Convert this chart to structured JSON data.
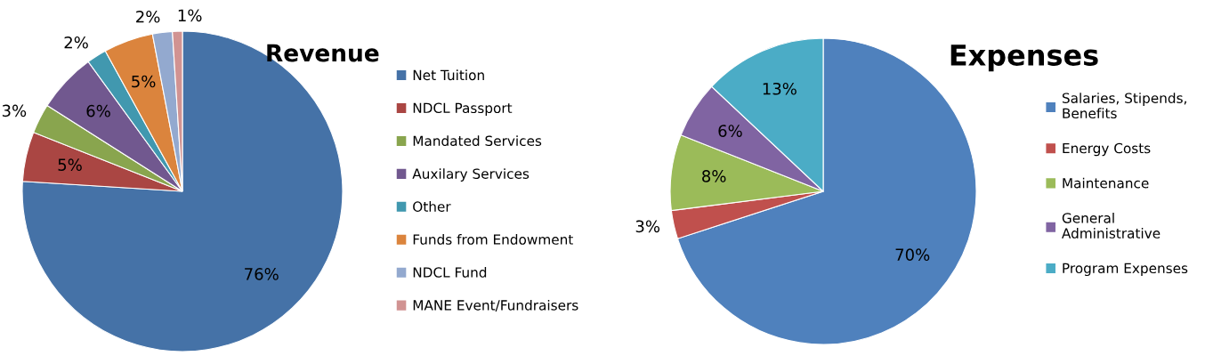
{
  "chart_data": [
    {
      "type": "pie",
      "title": "Revenue",
      "categories": [
        "Net Tuition",
        "NDCL Passport",
        "Mandated Services",
        "Auxilary Services",
        "Other",
        "Funds from Endowment",
        "NDCL Fund",
        "MANE Event/Fundraisers"
      ],
      "values": [
        76,
        5,
        3,
        6,
        2,
        5,
        2,
        1
      ],
      "value_labels": [
        "76%",
        "5%",
        "3%",
        "6%",
        "2%",
        "5%",
        "2%",
        "1%"
      ],
      "colors": [
        "#4572a7",
        "#aa4643",
        "#89a54e",
        "#71588f",
        "#4198af",
        "#db843d",
        "#93a9cf",
        "#d19392"
      ],
      "legend": "right"
    },
    {
      "type": "pie",
      "title": "Expenses",
      "categories": [
        "Salaries, Stipends,\nBenefits",
        "Energy Costs",
        "Maintenance",
        "General\nAdministrative",
        "Program Expenses"
      ],
      "values": [
        70,
        3,
        8,
        6,
        13
      ],
      "value_labels": [
        "70%",
        "3%",
        "8%",
        "6%",
        "13%"
      ],
      "colors": [
        "#4f81bd",
        "#c0504d",
        "#9bbb59",
        "#8064a2",
        "#4bacc6"
      ],
      "legend": "right"
    }
  ]
}
